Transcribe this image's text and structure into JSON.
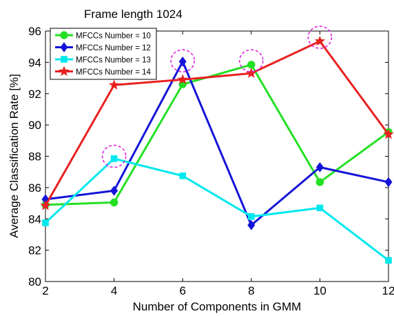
{
  "chart_data": {
    "type": "line",
    "title": "Frame length 1024",
    "xlabel": "Number of Components in GMM",
    "ylabel": "Average Classification Rate [%]",
    "x": [
      2,
      4,
      6,
      8,
      10,
      12
    ],
    "xlim": [
      2,
      12
    ],
    "ylim": [
      80,
      96
    ],
    "xticks": [
      "2",
      "4",
      "6",
      "8",
      "10",
      "12"
    ],
    "yticks": [
      "80",
      "82",
      "84",
      "86",
      "88",
      "90",
      "92",
      "94",
      "96"
    ],
    "grid": false,
    "legend_position": "top-left",
    "series": [
      {
        "name": "MFCCs Number = 10",
        "color": "#22e022",
        "marker": "circle",
        "values": [
          84.9,
          85.05,
          92.6,
          93.85,
          86.35,
          89.55
        ]
      },
      {
        "name": "MFCCs Number = 12",
        "color": "#1414d8",
        "marker": "diamond",
        "values": [
          85.25,
          85.8,
          94.05,
          83.6,
          87.3,
          86.35
        ]
      },
      {
        "name": "MFCCs Number = 13",
        "color": "#00e8ee",
        "marker": "square",
        "values": [
          83.75,
          87.85,
          86.75,
          84.15,
          84.7,
          81.35
        ]
      },
      {
        "name": "MFCCs Number = 14",
        "color": "#e82020",
        "marker": "star",
        "values": [
          84.85,
          92.55,
          92.9,
          93.3,
          95.35,
          89.4
        ]
      }
    ],
    "highlights": [
      {
        "x": 4,
        "y": 88.0
      },
      {
        "x": 6,
        "y": 94.1
      },
      {
        "x": 8,
        "y": 94.1
      },
      {
        "x": 10,
        "y": 95.6
      }
    ],
    "highlight_color": "#e020e0"
  }
}
